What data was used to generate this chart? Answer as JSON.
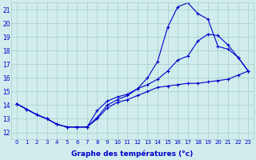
{
  "xlabel": "Graphe des températures (°c)",
  "xlim": [
    -0.5,
    23.5
  ],
  "ylim": [
    11.5,
    21.5
  ],
  "xticks": [
    0,
    1,
    2,
    3,
    4,
    5,
    6,
    7,
    8,
    9,
    10,
    11,
    12,
    13,
    14,
    15,
    16,
    17,
    18,
    19,
    20,
    21,
    22,
    23
  ],
  "yticks": [
    12,
    13,
    14,
    15,
    16,
    17,
    18,
    19,
    20,
    21
  ],
  "bg_color": "#d0ecec",
  "grid_color": "#a8cccc",
  "line_color": "#0000cc",
  "line1_x": [
    0,
    1,
    2,
    3,
    4,
    5,
    6,
    7,
    8,
    9,
    10,
    11,
    12,
    13,
    14,
    15,
    16,
    17,
    18,
    19,
    20,
    21,
    22,
    23
  ],
  "line1_y": [
    14.1,
    13.7,
    13.3,
    13.0,
    12.6,
    12.4,
    12.4,
    12.4,
    13.1,
    14.0,
    14.4,
    14.7,
    15.2,
    16.0,
    17.2,
    19.7,
    21.2,
    21.5,
    20.7,
    20.3,
    18.3,
    18.1,
    17.5,
    16.5
  ],
  "line2_x": [
    0,
    1,
    2,
    3,
    4,
    5,
    6,
    7,
    8,
    9,
    10,
    11,
    12,
    13,
    14,
    15,
    16,
    17,
    18,
    19,
    20,
    21,
    22,
    23
  ],
  "line2_y": [
    14.1,
    13.7,
    13.3,
    13.0,
    12.6,
    12.4,
    12.4,
    12.4,
    13.6,
    14.3,
    14.6,
    14.8,
    15.2,
    15.5,
    15.9,
    16.5,
    17.3,
    17.6,
    18.7,
    19.2,
    19.1,
    18.4,
    17.5,
    16.5
  ],
  "line3_x": [
    0,
    1,
    2,
    3,
    4,
    5,
    6,
    7,
    8,
    9,
    10,
    11,
    12,
    13,
    14,
    15,
    16,
    17,
    18,
    19,
    20,
    21,
    22,
    23
  ],
  "line3_y": [
    14.1,
    13.7,
    13.3,
    13.0,
    12.6,
    12.4,
    12.4,
    12.4,
    13.0,
    13.8,
    14.2,
    14.4,
    14.7,
    15.0,
    15.3,
    15.4,
    15.5,
    15.6,
    15.6,
    15.7,
    15.8,
    15.9,
    16.2,
    16.5
  ]
}
